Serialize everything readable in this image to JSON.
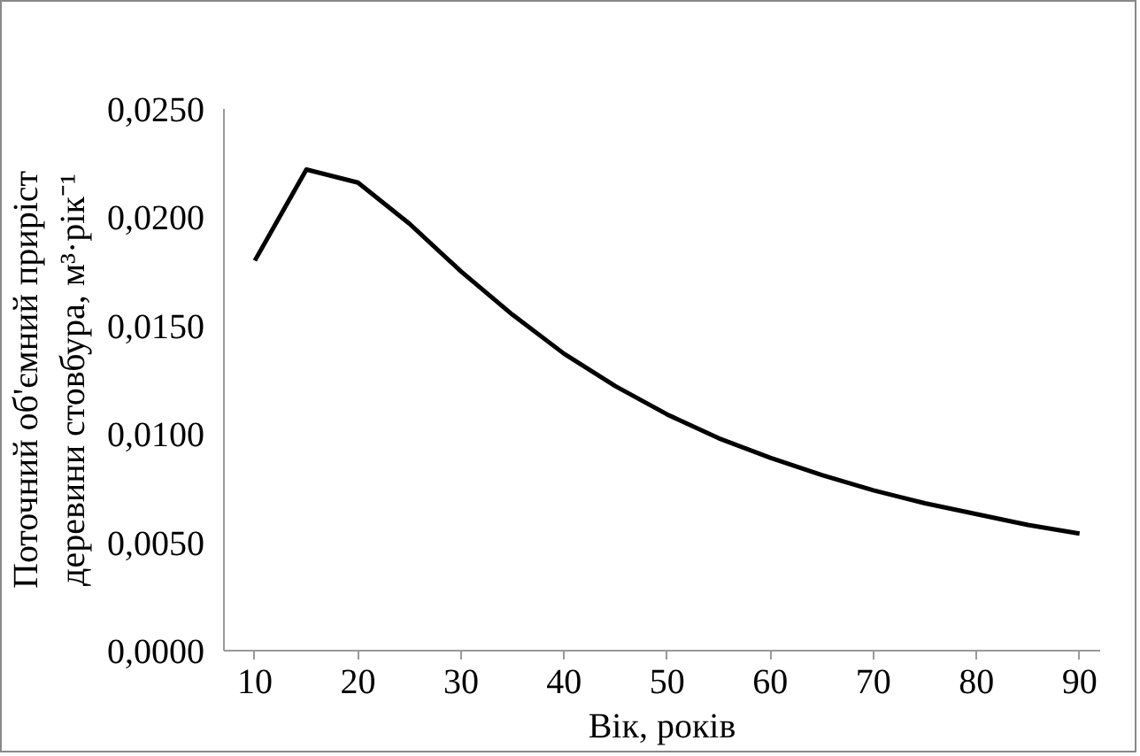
{
  "chart_data": {
    "type": "line",
    "xlabel": "Вік, років",
    "ylabel": "Поточний об'ємний приріст\nдеревини стовбура, м³·рік⁻¹",
    "x": [
      10,
      15,
      20,
      25,
      30,
      35,
      40,
      45,
      50,
      55,
      60,
      65,
      70,
      75,
      80,
      85,
      90
    ],
    "series": [
      {
        "color": "#000000",
        "values": [
          0.018,
          0.0222,
          0.0216,
          0.0197,
          0.0175,
          0.0155,
          0.0137,
          0.0122,
          0.0109,
          0.0098,
          0.0089,
          0.0081,
          0.0074,
          0.0068,
          0.0063,
          0.0058,
          0.0054
        ]
      }
    ],
    "xlim": [
      7,
      92
    ],
    "xticks": [
      10,
      20,
      30,
      40,
      50,
      60,
      70,
      80,
      90
    ],
    "ylim": [
      0,
      0.025
    ],
    "yticks": [
      {
        "value": 0,
        "label": "0,0000"
      },
      {
        "value": 0.005,
        "label": "0,0050"
      },
      {
        "value": 0.01,
        "label": "0,0100"
      },
      {
        "value": 0.015,
        "label": "0,0150"
      },
      {
        "value": 0.02,
        "label": "0,0200"
      },
      {
        "value": 0.025,
        "label": "0,0250"
      }
    ],
    "grid": false,
    "marker": "none",
    "line_style": "solid"
  }
}
